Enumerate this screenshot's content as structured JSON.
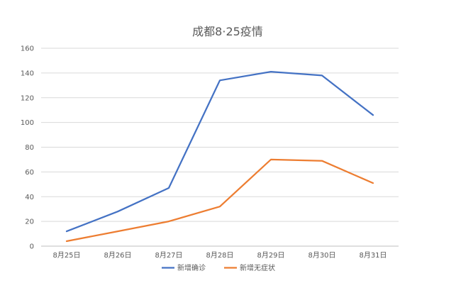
{
  "chart_data": {
    "type": "line",
    "title": "成都8·25疫情",
    "categories": [
      "8月25日",
      "8月26日",
      "8月27日",
      "8月28日",
      "8月29日",
      "8月30日",
      "8月31日"
    ],
    "series": [
      {
        "name": "新增确诊",
        "color": "#4472c4",
        "values": [
          12,
          28,
          47,
          134,
          141,
          138,
          106
        ]
      },
      {
        "name": "新增无症状",
        "color": "#ed7d31",
        "values": [
          4,
          12,
          20,
          32,
          70,
          69,
          51
        ]
      }
    ],
    "ylim": [
      0,
      160
    ],
    "yticks": [
      0,
      20,
      40,
      60,
      80,
      100,
      120,
      140,
      160
    ],
    "grid": true,
    "legend": "bottom"
  }
}
